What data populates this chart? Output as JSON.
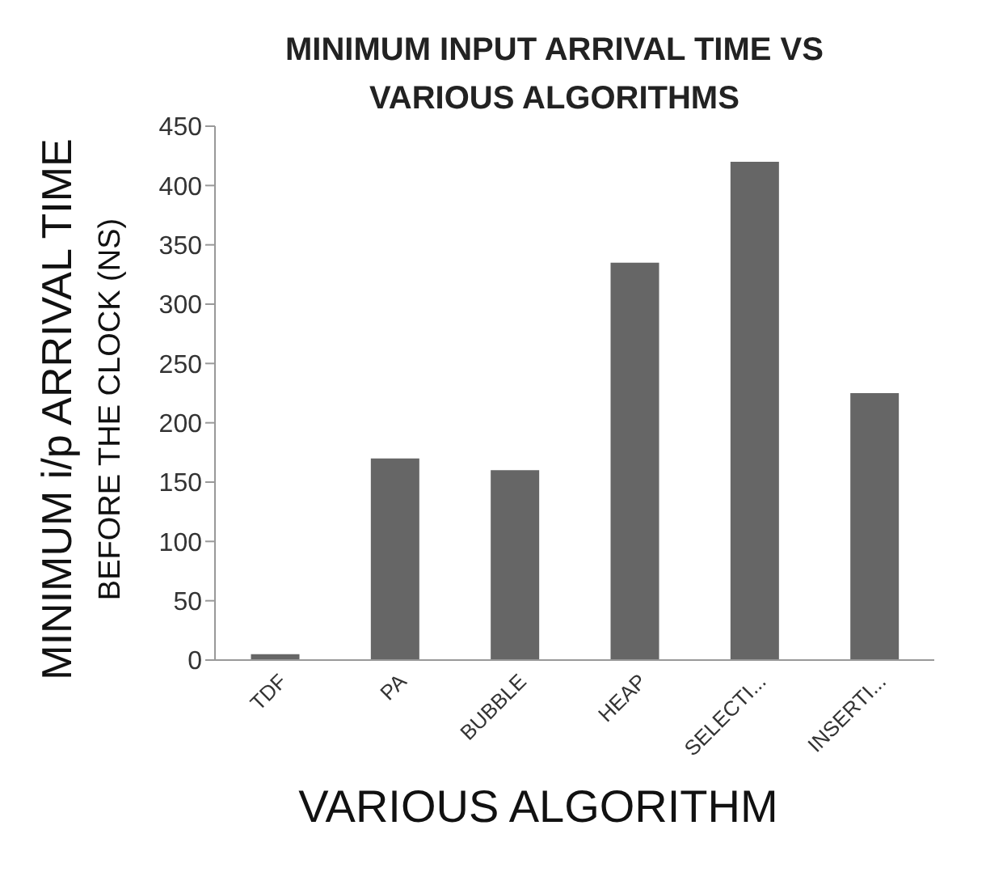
{
  "chart_data": {
    "type": "bar",
    "title": "MINIMUM INPUT ARRIVAL TIME VS VARIOUS ALGORITHMS",
    "xlabel": "VARIOUS ALGORITHM",
    "ylabel": "MINIMUM i/p ARRIVAL TIME BEFORE THE CLOCK (NS)",
    "categories": [
      "TDF",
      "PA",
      "BUBBLE",
      "HEAP",
      "SELECTI...",
      "INSERTI..."
    ],
    "values": [
      5,
      170,
      160,
      335,
      420,
      225
    ],
    "color": "#666666",
    "ylim": [
      0,
      450
    ],
    "yticks": [
      0,
      50,
      100,
      150,
      200,
      250,
      300,
      350,
      400,
      450
    ],
    "grid": false
  }
}
